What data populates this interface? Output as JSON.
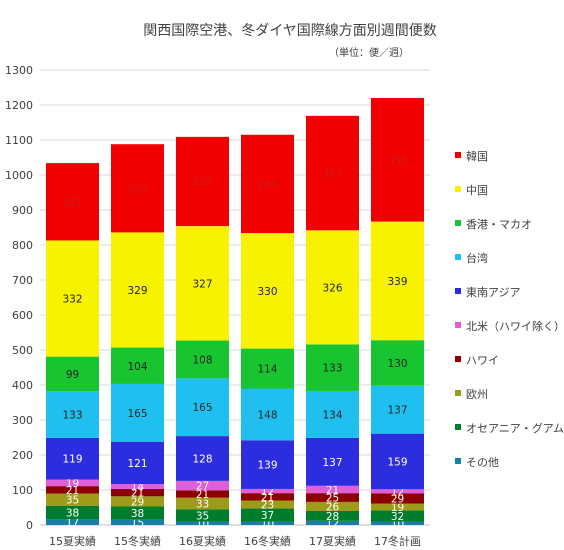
{
  "chart_data": {
    "type": "bar",
    "stacked": true,
    "title": "関西国際空港、冬ダイヤ国際線方面別週間便数",
    "subtitle": "（単位：便／週）",
    "categories": [
      "15夏実績",
      "15冬実績",
      "16夏実績",
      "16冬実績",
      "17夏実績",
      "17冬計画"
    ],
    "ylim": [
      0,
      1300
    ],
    "yticks": [
      0,
      100,
      200,
      300,
      400,
      500,
      600,
      700,
      800,
      900,
      1000,
      1100,
      1200,
      1300
    ],
    "grid": true,
    "legend_position": "right",
    "series": [
      {
        "name": "その他",
        "color": "#1a7fa8",
        "label_color": "#ffffff",
        "values": [
          17,
          15,
          10,
          10,
          12,
          10
        ]
      },
      {
        "name": "オセアニア・グアム",
        "color": "#007d2c",
        "label_color": "#ffffff",
        "values": [
          38,
          38,
          35,
          37,
          28,
          32
        ]
      },
      {
        "name": "欧州",
        "color": "#9c9c1a",
        "label_color": "#ffffff",
        "values": [
          35,
          29,
          33,
          23,
          26,
          19
        ]
      },
      {
        "name": "ハワイ",
        "color": "#8c0000",
        "label_color": "#ffffff",
        "values": [
          21,
          21,
          21,
          21,
          25,
          29
        ]
      },
      {
        "name": "北米（ハワイ除く）",
        "color": "#e05fd8",
        "label_color": "#ffffff",
        "values": [
          19,
          14,
          27,
          12,
          21,
          12
        ]
      },
      {
        "name": "東南アジア",
        "color": "#2d2de0",
        "label_color": "#ffffff",
        "values": [
          119,
          121,
          128,
          139,
          137,
          159
        ]
      },
      {
        "name": "台湾",
        "color": "#1fc0f0",
        "label_color": "#262626",
        "values": [
          133,
          165,
          165,
          148,
          134,
          137
        ]
      },
      {
        "name": "香港・マカオ",
        "color": "#18c430",
        "label_color": "#262626",
        "values": [
          99,
          104,
          108,
          114,
          133,
          130
        ]
      },
      {
        "name": "中国",
        "color": "#f7f200",
        "label_color": "#262626",
        "values": [
          332,
          329,
          327,
          330,
          326,
          339
        ]
      },
      {
        "name": "韓国",
        "color": "#f00000",
        "label_color": "#cc1a1a",
        "values": [
          221,
          252,
          255,
          281,
          327,
          353
        ]
      }
    ]
  }
}
